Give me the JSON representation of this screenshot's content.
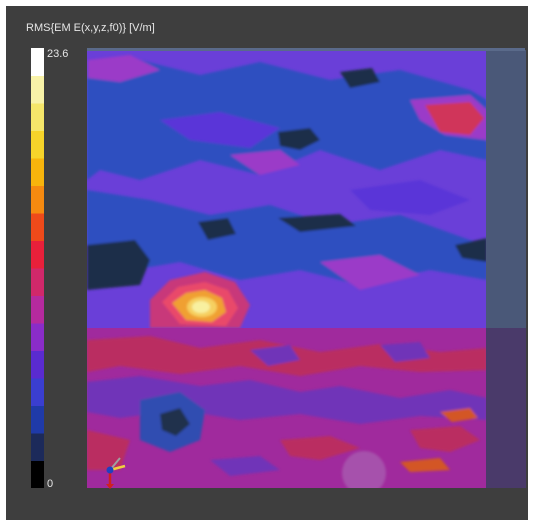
{
  "colorbar": {
    "title": "RMS{EM E(x,y,z,f0)} [V/m]",
    "max_label": "23.6",
    "min_label": "0",
    "max_value": 23.6,
    "min_value": 0,
    "colors": [
      "#000000",
      "#1c2a5a",
      "#1f3aa8",
      "#3a3ed0",
      "#5a2bd0",
      "#8a2cc8",
      "#b52a9e",
      "#d0286a",
      "#e8203a",
      "#ee4a1a",
      "#f58a10",
      "#f7b40c",
      "#f6d42a",
      "#f5e66a",
      "#f8f2a8",
      "#ffffff"
    ]
  },
  "palette": {
    "background": "#3e3e3e",
    "upper_base": "#6a3fd8",
    "lower_base": "#b226a8",
    "dark_patch": "#1e2f4a",
    "blue_region": "#2f4fc0",
    "hotspot_outer": "#e94a6a",
    "hotspot_mid": "#f0a030",
    "hotspot_core": "#f8f0a0",
    "side_strip": "#4a5878"
  },
  "icons": {
    "axes": "axes-triad-icon"
  }
}
